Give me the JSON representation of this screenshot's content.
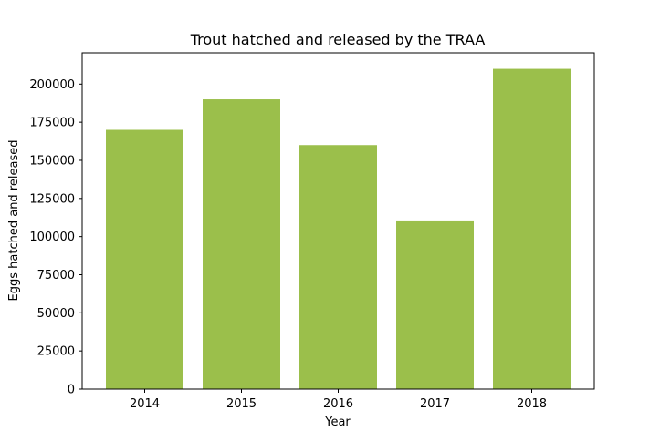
{
  "chart_data": {
    "type": "bar",
    "title": "Trout hatched and released by the TRAA",
    "xlabel": "Year",
    "ylabel": "Eggs hatched and released",
    "categories": [
      "2014",
      "2015",
      "2016",
      "2017",
      "2018"
    ],
    "values": [
      170000,
      190000,
      160000,
      110000,
      210000
    ],
    "ylim": [
      0,
      220500
    ],
    "yticks": [
      0,
      25000,
      50000,
      75000,
      100000,
      125000,
      150000,
      175000,
      200000
    ],
    "ytick_labels": [
      "0",
      "25000",
      "50000",
      "75000",
      "100000",
      "125000",
      "150000",
      "175000",
      "200000"
    ],
    "bar_color": "#9bbf4b",
    "grid": false,
    "legend": "none"
  }
}
